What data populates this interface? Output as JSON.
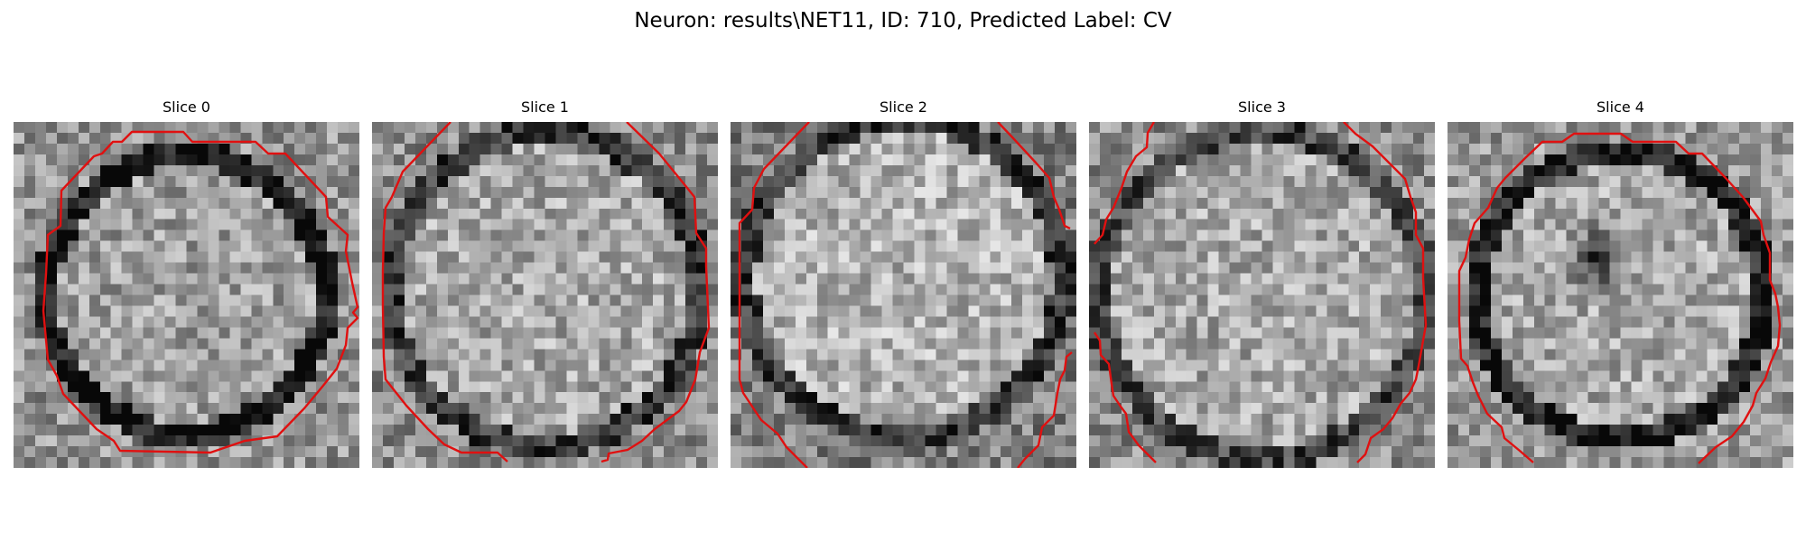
{
  "figure": {
    "title": "Neuron: results\\NET11, ID: 710, Predicted Label: CV"
  },
  "panels": [
    {
      "title": "Slice 0"
    },
    {
      "title": "Slice 1"
    },
    {
      "title": "Slice 2"
    },
    {
      "title": "Slice 3"
    },
    {
      "title": "Slice 4"
    }
  ],
  "contour_color": "#e01010",
  "image_colormap": "gray"
}
